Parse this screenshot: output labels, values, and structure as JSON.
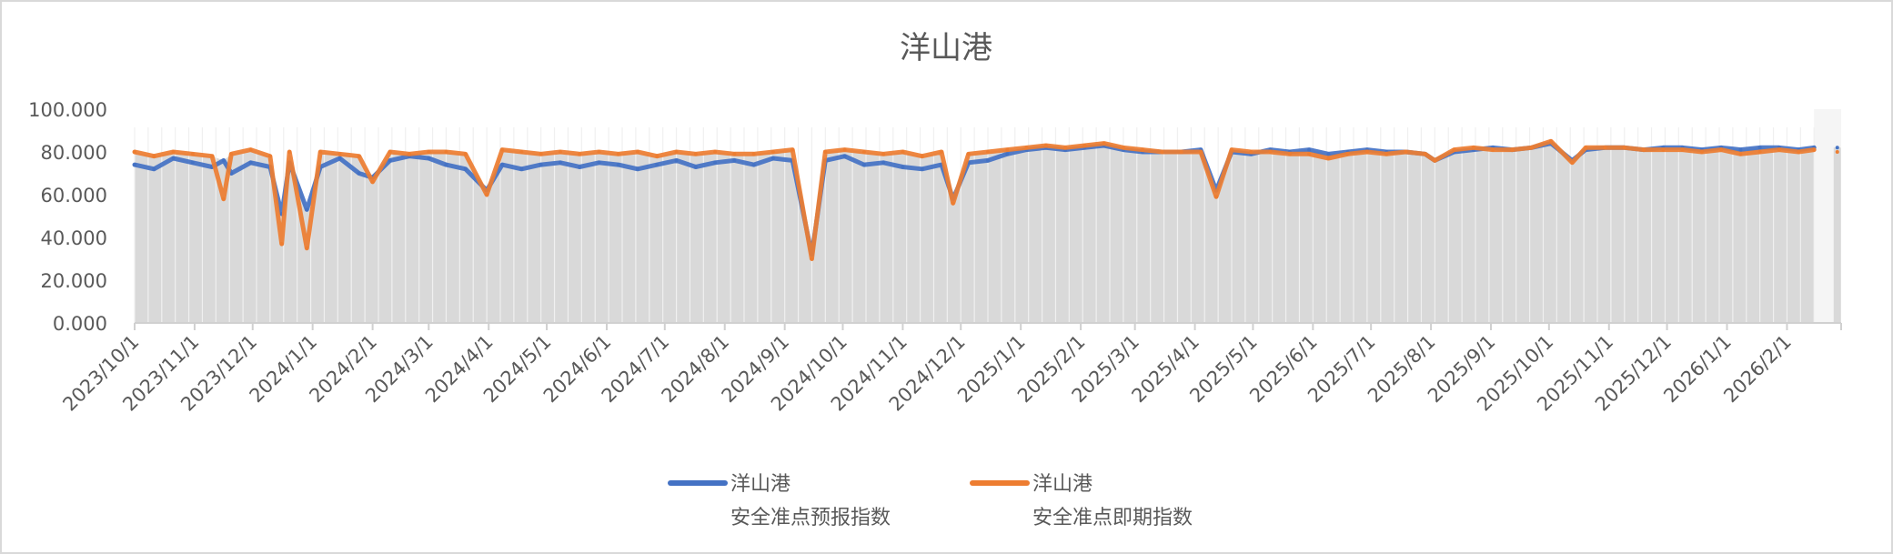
{
  "chart_data": {
    "type": "line",
    "title": "洋山港",
    "ylim": [
      0,
      100
    ],
    "yticks": [
      "0.000",
      "20.000",
      "40.000",
      "60.000",
      "80.000",
      "100.000"
    ],
    "ytick_values": [
      0,
      20,
      40,
      60,
      80,
      100
    ],
    "xlim": [
      "2023-10-01",
      "2026-03-01"
    ],
    "xticks": [
      "2023/10/1",
      "2023/11/1",
      "2023/12/1",
      "2024/1/1",
      "2024/2/1",
      "2024/3/1",
      "2024/4/1",
      "2024/5/1",
      "2024/6/1",
      "2024/7/1",
      "2024/8/1",
      "2024/9/1",
      "2024/10/1",
      "2024/11/1",
      "2024/12/1",
      "2025/1/1",
      "2025/2/1",
      "2025/3/1",
      "2025/4/1",
      "2025/5/1",
      "2025/6/1",
      "2025/7/1",
      "2025/8/1",
      "2025/9/1",
      "2025/10/1",
      "2025/11/1",
      "2025/12/1",
      "2026/1/1",
      "2026/2/1"
    ],
    "grid": false,
    "legend_placement": "bottom",
    "background_columns": "gray columns under the lines",
    "colors": {
      "forecast": "#4472C4",
      "realtime": "#ED7D31",
      "columns": "#D9D9D9"
    },
    "x": [
      "2023-10-01",
      "2023-10-11",
      "2023-10-21",
      "2023-10-31",
      "2023-11-10",
      "2023-11-16",
      "2023-11-20",
      "2023-11-30",
      "2023-12-10",
      "2023-12-16",
      "2023-12-20",
      "2023-12-29",
      "2024-01-05",
      "2024-01-15",
      "2024-01-25",
      "2024-02-01",
      "2024-02-10",
      "2024-02-20",
      "2024-03-01",
      "2024-03-10",
      "2024-03-20",
      "2024-03-31",
      "2024-04-08",
      "2024-04-18",
      "2024-04-28",
      "2024-05-08",
      "2024-05-18",
      "2024-05-28",
      "2024-06-07",
      "2024-06-17",
      "2024-06-27",
      "2024-07-07",
      "2024-07-17",
      "2024-07-27",
      "2024-08-06",
      "2024-08-16",
      "2024-08-26",
      "2024-09-05",
      "2024-09-15",
      "2024-09-22",
      "2024-10-02",
      "2024-10-12",
      "2024-10-22",
      "2024-11-01",
      "2024-11-11",
      "2024-11-21",
      "2024-11-27",
      "2024-12-05",
      "2024-12-15",
      "2024-12-25",
      "2025-01-04",
      "2025-01-14",
      "2025-01-24",
      "2025-02-03",
      "2025-02-13",
      "2025-02-23",
      "2025-03-05",
      "2025-03-15",
      "2025-03-25",
      "2025-04-04",
      "2025-04-12",
      "2025-04-20",
      "2025-04-30",
      "2025-05-10",
      "2025-05-20",
      "2025-05-30",
      "2025-06-09",
      "2025-06-19",
      "2025-06-29",
      "2025-07-09",
      "2025-07-19",
      "2025-07-29",
      "2025-08-03",
      "2025-08-13",
      "2025-08-23",
      "2025-09-02",
      "2025-09-12",
      "2025-09-22",
      "2025-10-02",
      "2025-10-13",
      "2025-10-20",
      "2025-10-30",
      "2025-11-09",
      "2025-11-19",
      "2025-11-29",
      "2025-12-09",
      "2025-12-19",
      "2025-12-29",
      "2026-01-08",
      "2026-01-18",
      "2026-01-28",
      "2026-02-07",
      "2026-02-15",
      "2026-02-21",
      "2026-02-27"
    ],
    "series": [
      {
        "name": "洋山港\n安全准点预报指数",
        "name_lines": [
          "洋山港",
          "安全准点预报指数"
        ],
        "color": "#4472C4",
        "values": [
          74,
          72,
          77,
          75,
          73,
          76,
          70,
          75,
          73,
          51,
          75,
          53,
          73,
          77,
          70,
          68,
          76,
          78,
          77,
          74,
          72,
          62,
          74,
          72,
          74,
          75,
          73,
          75,
          74,
          72,
          74,
          76,
          73,
          75,
          76,
          74,
          77,
          76,
          32,
          76,
          78,
          74,
          75,
          73,
          72,
          74,
          58,
          75,
          76,
          79,
          81,
          82,
          81,
          82,
          83,
          81,
          80,
          80,
          80,
          81,
          62,
          80,
          79,
          81,
          80,
          81,
          79,
          80,
          81,
          80,
          80,
          79,
          76,
          80,
          81,
          82,
          81,
          82,
          84,
          76,
          81,
          82,
          82,
          81,
          82,
          82,
          81,
          82,
          81,
          82,
          82,
          81,
          82,
          null,
          82
        ]
      },
      {
        "name": "洋山港\n安全准点即期指数",
        "name_lines": [
          "洋山港",
          "安全准点即期指数"
        ],
        "color": "#ED7D31",
        "values": [
          80,
          78,
          80,
          79,
          78,
          58,
          79,
          81,
          78,
          37,
          80,
          35,
          80,
          79,
          78,
          66,
          80,
          79,
          80,
          80,
          79,
          60,
          81,
          80,
          79,
          80,
          79,
          80,
          79,
          80,
          78,
          80,
          79,
          80,
          79,
          79,
          80,
          81,
          30,
          80,
          81,
          80,
          79,
          80,
          78,
          80,
          56,
          79,
          80,
          81,
          82,
          83,
          82,
          83,
          84,
          82,
          81,
          80,
          80,
          80,
          59,
          81,
          80,
          80,
          79,
          79,
          77,
          79,
          80,
          79,
          80,
          79,
          76,
          81,
          82,
          81,
          81,
          82,
          85,
          75,
          82,
          82,
          82,
          81,
          81,
          81,
          80,
          81,
          79,
          80,
          81,
          80,
          81,
          null,
          80
        ]
      }
    ]
  }
}
